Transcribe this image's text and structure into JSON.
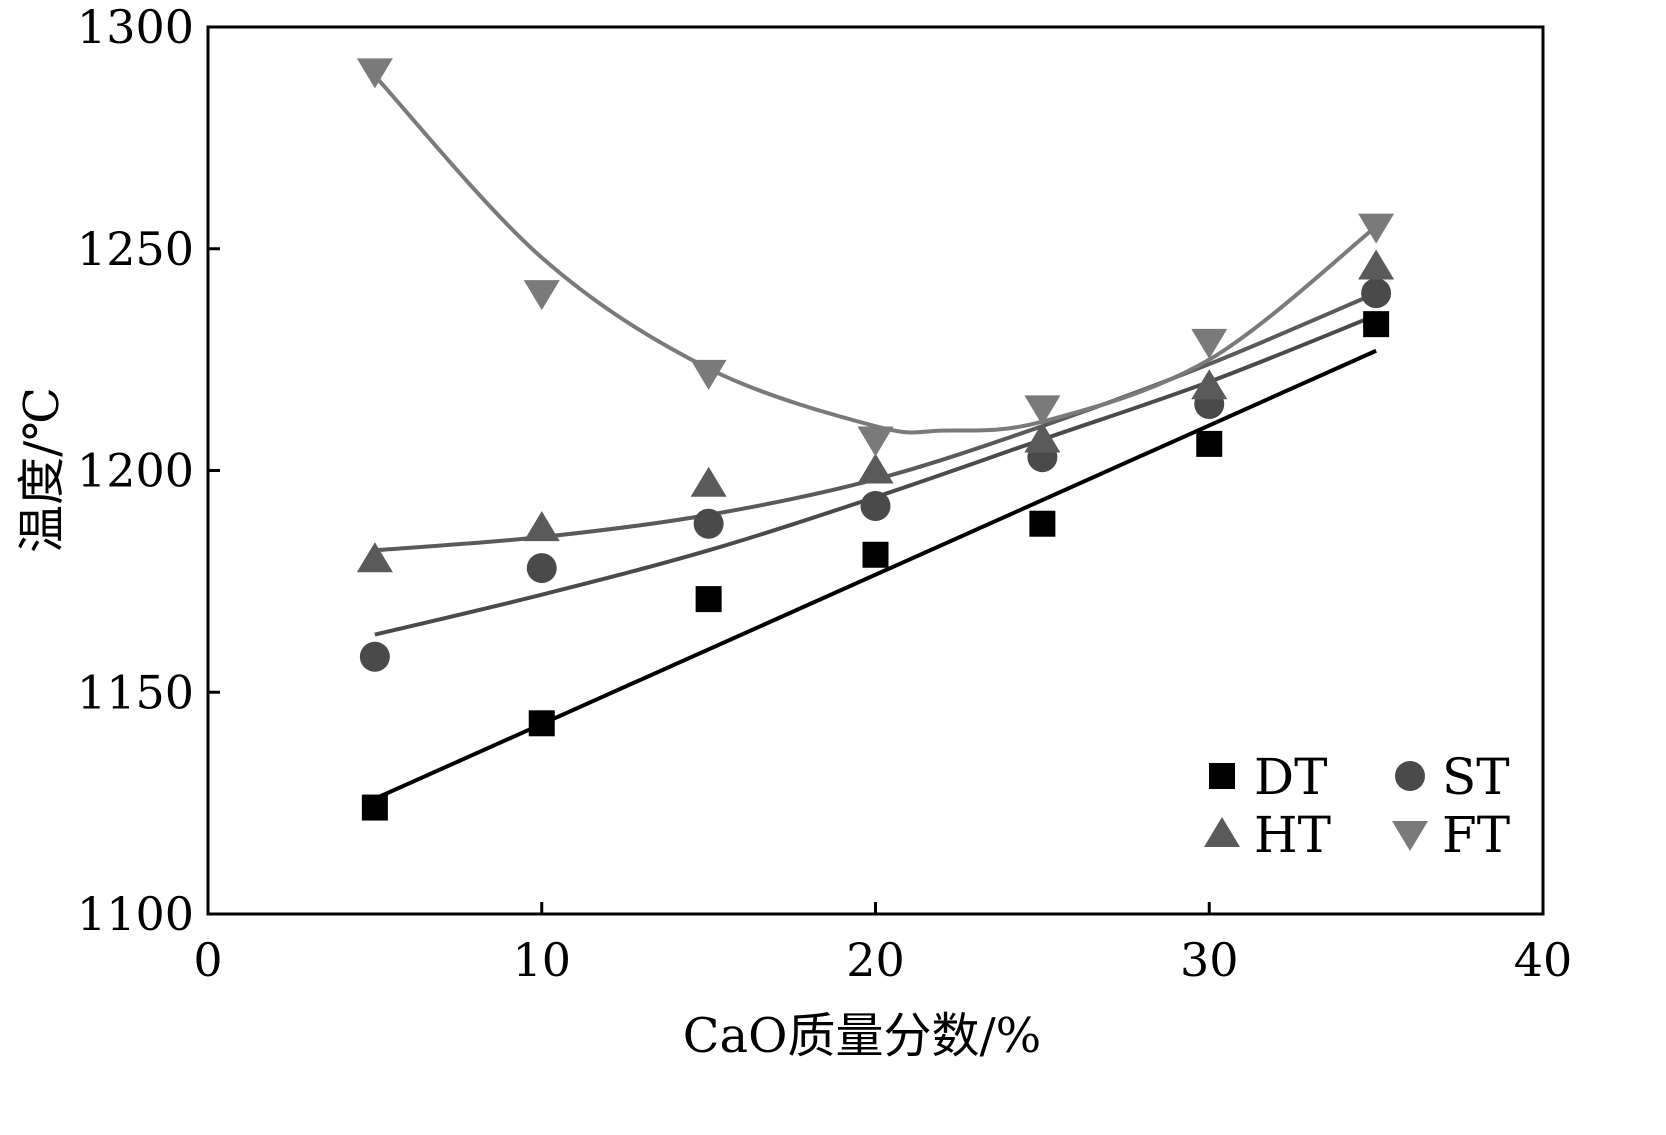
{
  "chart_data": {
    "type": "scatter",
    "title": "",
    "xlabel": "CaO质量分数/%",
    "ylabel": "温度/℃",
    "xlim": [
      0,
      40
    ],
    "ylim": [
      1100,
      1300
    ],
    "xticks": [
      "0",
      "10",
      "20",
      "30",
      "40"
    ],
    "yticks": [
      "1100",
      "1150",
      "1200",
      "1250",
      "1300"
    ],
    "x": [
      5,
      10,
      15,
      20,
      25,
      30,
      35
    ],
    "legend_position": "bottom-right",
    "series": [
      {
        "name": "DT",
        "marker": "square",
        "color": "#000000",
        "values": [
          1124,
          1143,
          1171,
          1181,
          1188,
          1206,
          1233
        ],
        "fit": {
          "kind": "linear",
          "x": [
            5,
            35
          ],
          "y": [
            1126,
            1227
          ]
        }
      },
      {
        "name": "ST",
        "marker": "circle",
        "color": "#4a4a4a",
        "values": [
          1158,
          1178,
          1188,
          1192,
          1203,
          1215,
          1240
        ],
        "fit": {
          "kind": "curve",
          "x": [
            5,
            10,
            15,
            20,
            25,
            30,
            35
          ],
          "y": [
            1163,
            1172,
            1182,
            1194,
            1207,
            1220,
            1235
          ]
        }
      },
      {
        "name": "HT",
        "marker": "triangle-up",
        "color": "#5a5a5a",
        "values": [
          1180,
          1187,
          1197,
          1200,
          1207,
          1219,
          1246
        ],
        "fit": {
          "kind": "curve",
          "x": [
            5,
            10,
            15,
            20,
            25,
            30,
            35
          ],
          "y": [
            1182,
            1185,
            1190,
            1198,
            1210,
            1224,
            1240
          ]
        }
      },
      {
        "name": "FT",
        "marker": "triangle-down",
        "color": "#7a7a7a",
        "values": [
          1290,
          1240,
          1222,
          1207,
          1214,
          1229,
          1255
        ],
        "fit": {
          "kind": "curve",
          "x": [
            5,
            10,
            15,
            20,
            22,
            25,
            30,
            35
          ],
          "y": [
            1289,
            1248,
            1223,
            1210,
            1209,
            1211,
            1225,
            1255
          ]
        }
      }
    ]
  }
}
